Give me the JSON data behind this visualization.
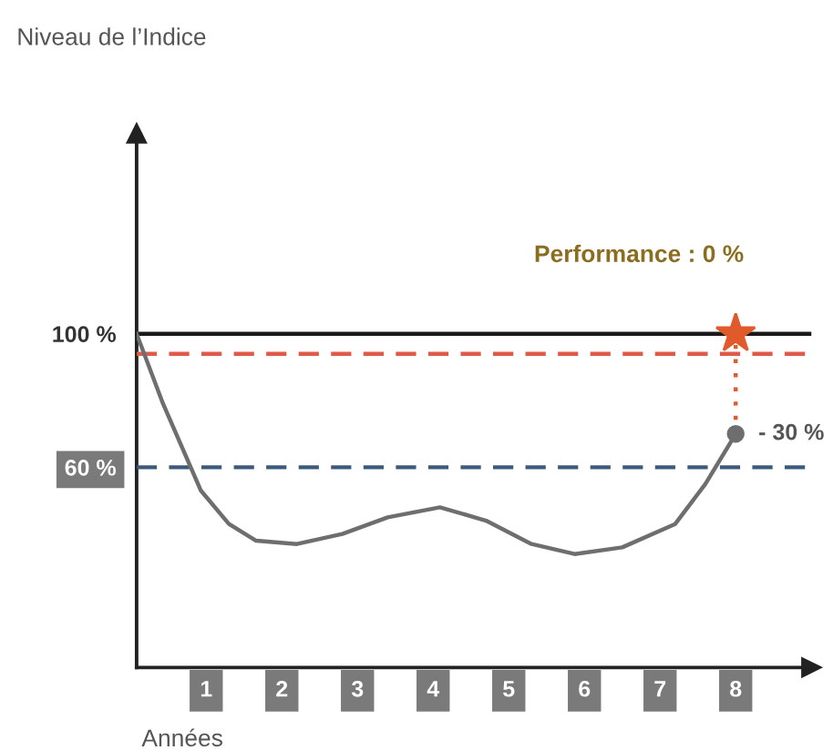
{
  "chart_data": {
    "type": "line",
    "ylabel": "Niveau de l’Indice",
    "xlabel": "Années",
    "xlim": [
      0.08,
      9.0
    ],
    "xticks": [
      1,
      2,
      3,
      4,
      5,
      6,
      7,
      8
    ],
    "ylim": [
      0,
      160
    ],
    "yticks": [
      {
        "value": 100,
        "label": "100 %"
      },
      {
        "value": 60,
        "label": "60 %"
      }
    ],
    "series": [
      {
        "color": "#6e6e6e",
        "x": [
          0.08,
          0.43,
          0.93,
          1.3,
          1.66,
          2.2,
          2.8,
          3.4,
          4.09,
          4.7,
          5.3,
          5.87,
          6.5,
          7.2,
          7.6,
          8.0
        ],
        "values": [
          100,
          79,
          53,
          43,
          38,
          37,
          40,
          45,
          48,
          44,
          37,
          34,
          36,
          43,
          55,
          70
        ]
      },
      {
        "type": "line",
        "color": "#e05a2b",
        "line_style": "dotted",
        "x": [
          8,
          8
        ],
        "values": [
          70,
          100
        ]
      },
      {
        "type": "scatter",
        "color": "#6e6e6e",
        "marker": "circle",
        "x": [
          8
        ],
        "values": [
          70
        ]
      },
      {
        "type": "scatter",
        "color": "#e05a2b",
        "marker": "star",
        "x": [
          8
        ],
        "values": [
          100
        ]
      }
    ],
    "ref_lines": [
      {
        "axis": "y",
        "value": 100,
        "color": "#1a1a1a",
        "line_style": "solid"
      },
      {
        "axis": "y",
        "value": 94,
        "color": "#e05a4a",
        "line_style": "dashed"
      },
      {
        "axis": "y",
        "value": 60,
        "color": "#3d5a7a",
        "line_style": "dashed"
      }
    ],
    "annotations": [
      "Performance : 0 %",
      {
        "text": "- 30 %",
        "x": 8,
        "y": 70
      }
    ]
  }
}
